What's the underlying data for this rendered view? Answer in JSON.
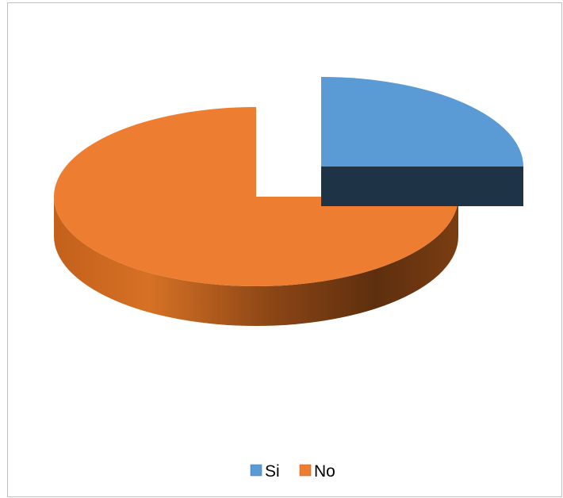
{
  "chart_data": {
    "type": "pie",
    "style": "3d-exploded",
    "title": "",
    "slices": [
      {
        "name": "Si",
        "value": 25,
        "color": "#5B9BD5",
        "exploded": true
      },
      {
        "name": "No",
        "value": 75,
        "color": "#ED7D31",
        "exploded": false
      }
    ],
    "legend": {
      "position": "bottom",
      "items": [
        {
          "label": "Si",
          "color": "#5B9BD5"
        },
        {
          "label": "No",
          "color": "#ED7D31"
        }
      ]
    }
  }
}
